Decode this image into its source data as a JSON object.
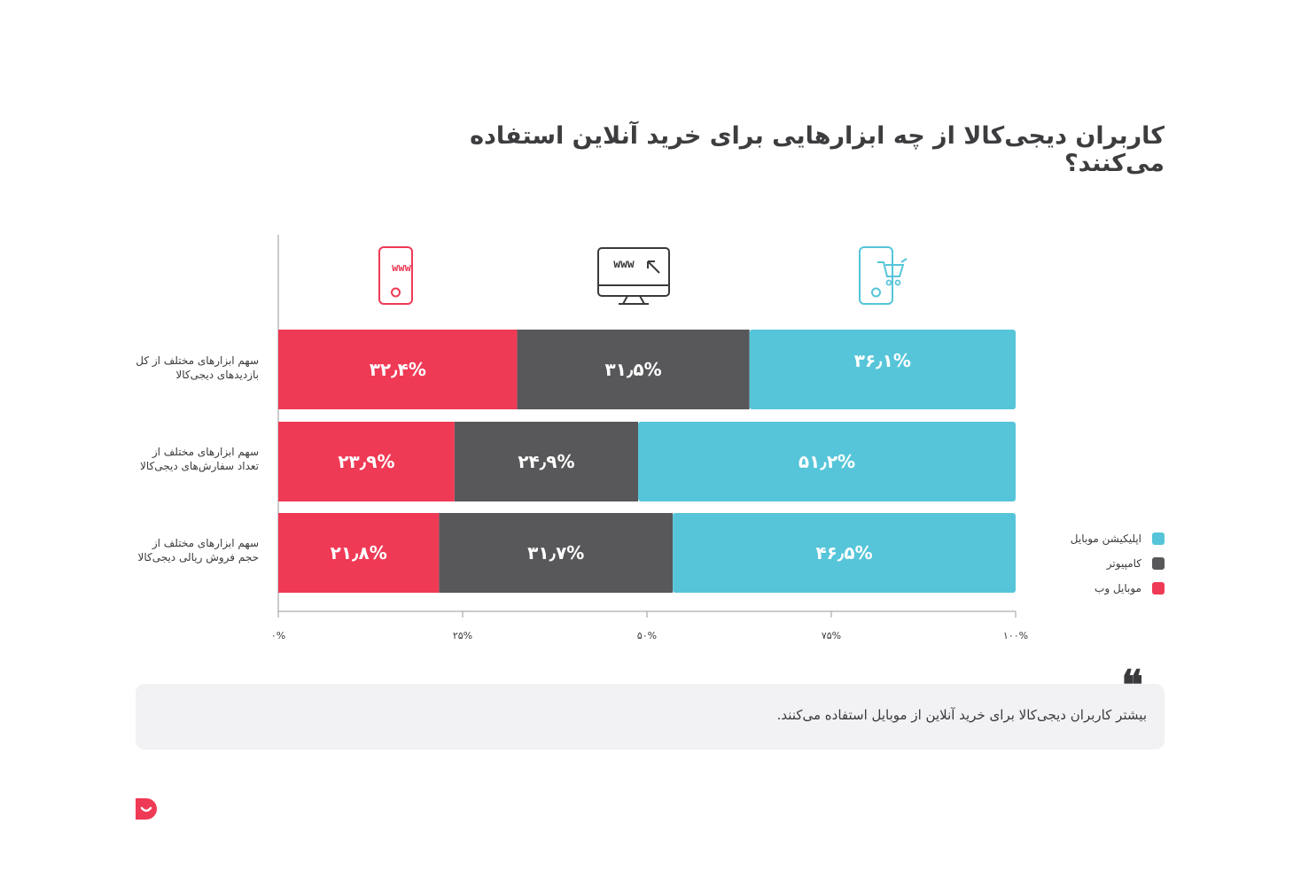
{
  "title": "کاربران دیجی‌کالا از چه ابزارهایی برای خرید آنلاین استفاده می‌کنند؟",
  "colors": {
    "mobile_web": "#ef3a55",
    "computer": "#58585b",
    "mobile_app": "#56c5d9"
  },
  "icons": [
    "mobile-web-icon",
    "computer-icon",
    "mobile-app-icon"
  ],
  "icon_text": {
    "www": "www"
  },
  "rows": [
    {
      "label_line1": "سهم ابزارهای مختلف از کل",
      "label_line2": "بازدیدهای دیجی‌کالا"
    },
    {
      "label_line1": "سهم ابزارهای مختلف از",
      "label_line2": "تعداد سفارش‌های دیجی‌کالا"
    },
    {
      "label_line1": "سهم ابزارهای مختلف از",
      "label_line2": "حجم فروش ریالی دیجی‌کالا"
    }
  ],
  "chart_data": {
    "type": "bar",
    "orientation": "horizontal",
    "stacked": true,
    "percent": true,
    "categories": [
      "سهم ابزارهای مختلف از کل بازدیدهای دیجی‌کالا",
      "سهم ابزارهای مختلف از تعداد سفارش‌های دیجی‌کالا",
      "سهم ابزارهای مختلف از حجم فروش ریالی دیجی‌کالا"
    ],
    "series": [
      {
        "name": "موبایل وب",
        "values": [
          32.4,
          23.9,
          21.8
        ],
        "labels": [
          "۳۲٫۴%",
          "۲۳٫۹%",
          "۲۱٫۸%"
        ]
      },
      {
        "name": "کامپیوتر",
        "values": [
          31.5,
          24.9,
          31.7
        ],
        "labels": [
          "۳۱٫۵%",
          "۲۴٫۹%",
          "۳۱٫۷%"
        ]
      },
      {
        "name": "اپلیکیشن موبایل",
        "values": [
          36.1,
          51.2,
          46.5
        ],
        "labels": [
          "۳۶٫۱%",
          "۵۱٫۲%",
          "۴۶٫۵%"
        ]
      }
    ],
    "xlim": [
      0,
      100
    ],
    "xticks": [
      0,
      25,
      50,
      75,
      100
    ],
    "xtick_labels": [
      "۰%",
      "۲۵%",
      "۵۰%",
      "۷۵%",
      "۱۰۰%"
    ],
    "grid": false,
    "legend_position": "right"
  },
  "legend": [
    {
      "label": "اپلیکیشن موبایل",
      "color": "#56c5d9"
    },
    {
      "label": "کامپیوتر",
      "color": "#58585b"
    },
    {
      "label": "موبایل وب",
      "color": "#ef3a55"
    }
  ],
  "note": {
    "text": "بیشتر کاربران دیجی‌کالا برای خرید آنلاین از موبایل استفاده می‌کنند.",
    "quote_icon": "quote-icon"
  },
  "logo": {
    "icon": "digikala-logo-icon"
  }
}
